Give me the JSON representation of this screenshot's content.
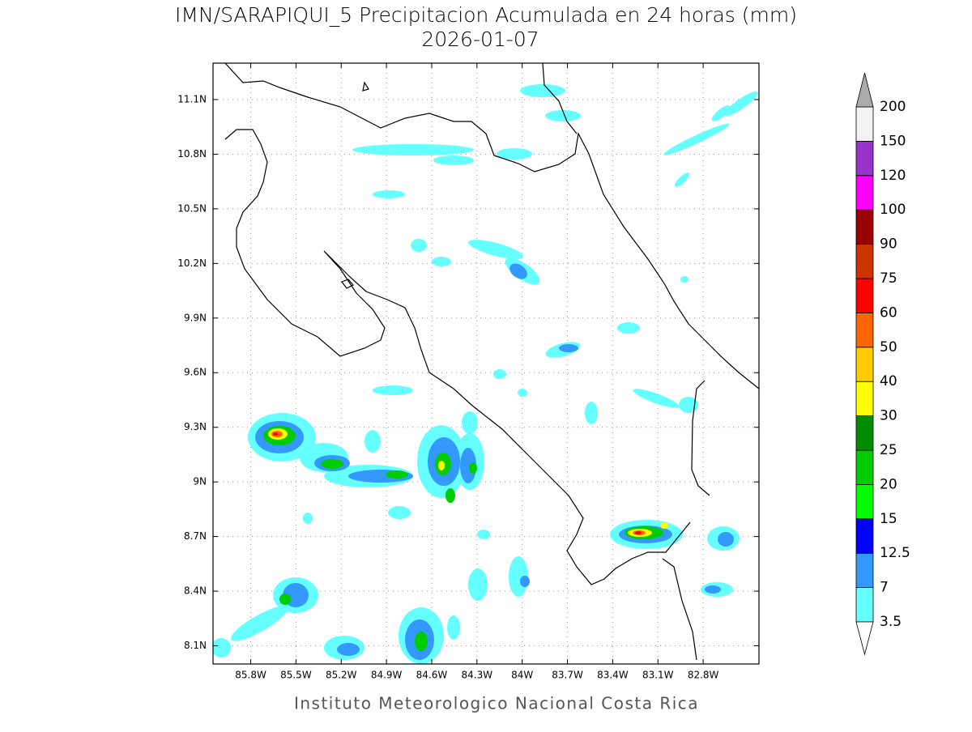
{
  "map": {
    "title": "IMN/SARAPIQUI_5 Precipitacion Acumulada en 24 horas (mm)",
    "subtitle": "2026-01-07",
    "footer": "Instituto Meteorologico Nacional Costa Rica",
    "xlim": [
      -86.05,
      -82.43
    ],
    "ylim": [
      8.0,
      11.3
    ],
    "xticks": [
      {
        "value": -85.8,
        "label": "85.8W"
      },
      {
        "value": -85.5,
        "label": "85.5W"
      },
      {
        "value": -85.2,
        "label": "85.2W"
      },
      {
        "value": -84.9,
        "label": "84.9W"
      },
      {
        "value": -84.6,
        "label": "84.6W"
      },
      {
        "value": -84.3,
        "label": "84.3W"
      },
      {
        "value": -84.0,
        "label": "84W"
      },
      {
        "value": -83.7,
        "label": "83.7W"
      },
      {
        "value": -83.4,
        "label": "83.4W"
      },
      {
        "value": -83.1,
        "label": "83.1W"
      },
      {
        "value": -82.8,
        "label": "82.8W"
      }
    ],
    "yticks": [
      {
        "value": 8.1,
        "label": "8.1N"
      },
      {
        "value": 8.4,
        "label": "8.4N"
      },
      {
        "value": 8.7,
        "label": "8.7N"
      },
      {
        "value": 9.0,
        "label": "9N"
      },
      {
        "value": 9.3,
        "label": "9.3N"
      },
      {
        "value": 9.6,
        "label": "9.6N"
      },
      {
        "value": 9.9,
        "label": "9.9N"
      },
      {
        "value": 10.2,
        "label": "10.2N"
      },
      {
        "value": 10.5,
        "label": "10.5N"
      },
      {
        "value": 10.8,
        "label": "10.8N"
      },
      {
        "value": 11.1,
        "label": "11.1N"
      }
    ],
    "grid": true,
    "colorbar": {
      "levels": [
        3.5,
        7,
        12.5,
        15,
        20,
        25,
        30,
        40,
        50,
        60,
        75,
        90,
        100,
        120,
        150,
        200
      ],
      "colors": [
        "#66ffff",
        "#3399ff",
        "#0000ff",
        "#00ff00",
        "#00cc00",
        "#008c00",
        "#ffff00",
        "#ffcc00",
        "#ff6600",
        "#ff0000",
        "#cc3300",
        "#990000",
        "#ff00ff",
        "#9933cc",
        "#f2f2f2"
      ],
      "under_color": "#ffffff",
      "over_color": "#aaaaaa"
    }
  }
}
